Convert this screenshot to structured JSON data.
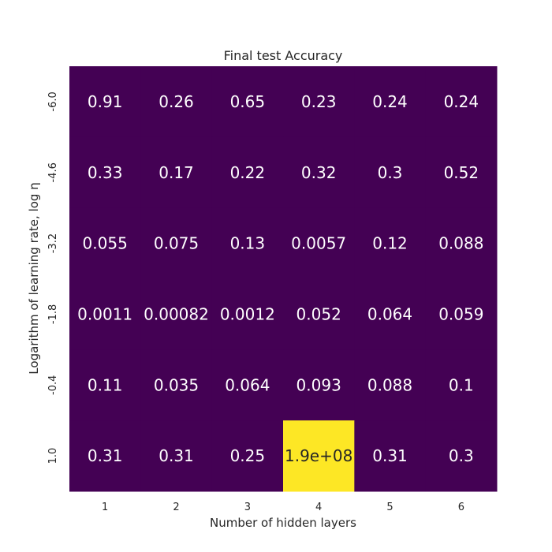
{
  "chart_data": {
    "type": "heatmap",
    "title": "Final test Accuracy",
    "xlabel": "Number of hidden layers",
    "ylabel": "Logarithm of learning rate, log η",
    "x_categories": [
      "1",
      "2",
      "3",
      "4",
      "5",
      "6"
    ],
    "y_categories": [
      "-6.0",
      "-4.6",
      "-3.2",
      "-1.8",
      "-0.4",
      "1.0"
    ],
    "values": [
      [
        0.91,
        0.26,
        0.65,
        0.23,
        0.24,
        0.24
      ],
      [
        0.33,
        0.17,
        0.22,
        0.32,
        0.3,
        0.52
      ],
      [
        0.055,
        0.075,
        0.13,
        0.0057,
        0.12,
        0.088
      ],
      [
        0.0011,
        0.00082,
        0.0012,
        0.052,
        0.064,
        0.059
      ],
      [
        0.11,
        0.035,
        0.064,
        0.093,
        0.088,
        0.1
      ],
      [
        0.31,
        0.31,
        0.25,
        190000000,
        0.31,
        0.3
      ]
    ],
    "annotations": [
      [
        "0.91",
        "0.26",
        "0.65",
        "0.23",
        "0.24",
        "0.24"
      ],
      [
        "0.33",
        "0.17",
        "0.22",
        "0.32",
        "0.3",
        "0.52"
      ],
      [
        "0.055",
        "0.075",
        "0.13",
        "0.0057",
        "0.12",
        "0.088"
      ],
      [
        "0.0011",
        "0.00082",
        "0.0012",
        "0.052",
        "0.064",
        "0.059"
      ],
      [
        "0.11",
        "0.035",
        "0.064",
        "0.093",
        "0.088",
        "0.1"
      ],
      [
        "0.31",
        "0.31",
        "0.25",
        "1.9e+08",
        "0.31",
        "0.3"
      ]
    ],
    "colormap": "viridis",
    "low_color": "#440154",
    "high_color": "#fde725",
    "text_color_on_dark": "#ffffff",
    "text_color_on_light": "#262626",
    "grid": false,
    "colorbar": false
  }
}
